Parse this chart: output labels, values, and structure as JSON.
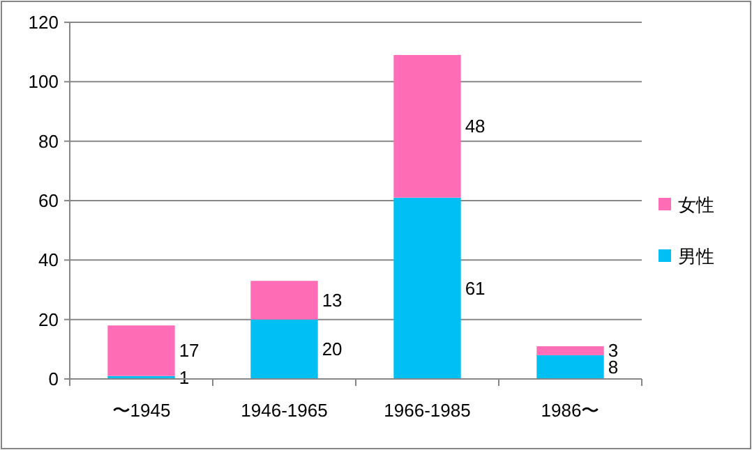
{
  "chart_data": {
    "type": "bar",
    "stacked": true,
    "categories": [
      "〜1945",
      "1946-1965",
      "1966-1985",
      "1986〜"
    ],
    "series": [
      {
        "name": "男性",
        "color": "#00bff3",
        "values": [
          1,
          20,
          61,
          8
        ]
      },
      {
        "name": "女性",
        "color": "#ff6db6",
        "values": [
          17,
          13,
          48,
          3
        ]
      }
    ],
    "ylim": [
      0,
      120
    ],
    "yticks": [
      0,
      20,
      40,
      60,
      80,
      100,
      120
    ],
    "grid": "y",
    "legend": "right",
    "data_labels": true
  }
}
